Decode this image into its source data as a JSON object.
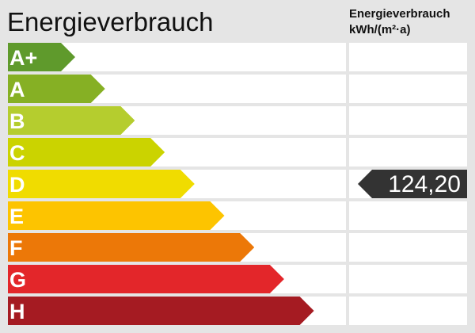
{
  "chart_data": {
    "type": "bar",
    "title": "Energieverbrauch",
    "unit_label_line1": "Energieverbrauch",
    "unit_label_line2": "kWh/(m²·a)",
    "categories": [
      "A+",
      "A",
      "B",
      "C",
      "D",
      "E",
      "F",
      "G",
      "H"
    ],
    "colors": [
      "#5f9a2c",
      "#86b024",
      "#b5cd2e",
      "#cbd300",
      "#f0dc00",
      "#fdc400",
      "#ec7808",
      "#e3262a",
      "#a51b22"
    ],
    "value": "124,20",
    "value_class": "D",
    "marker_color": "#333333"
  }
}
